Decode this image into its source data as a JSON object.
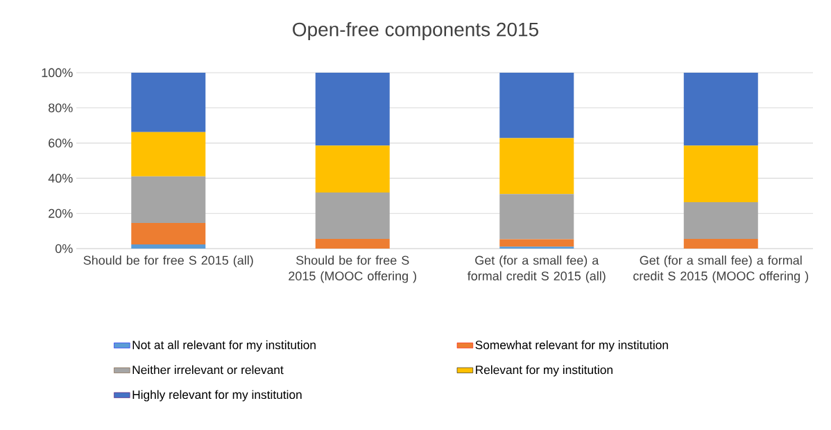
{
  "chart_data": {
    "type": "bar",
    "stacked": true,
    "title": "Open-free components 2015",
    "categories": [
      "Should be for free S 2015 (all)",
      "Should be for free  S 2015 (MOOC offering )",
      "Get (for a small fee) a formal credit S 2015 (all)",
      "Get (for a small fee) a formal credit S 2015 (MOOC offering )"
    ],
    "series": [
      {
        "name": "Not at all relevant for my institution",
        "color": "#5b9bd5",
        "values": [
          2.4,
          0,
          1.1,
          0
        ]
      },
      {
        "name": "Somewhat relevant for my institution",
        "color": "#ed7d31",
        "values": [
          12.2,
          5.5,
          4.2,
          5.5
        ]
      },
      {
        "name": "Neither irrelevant or relevant",
        "color": "#a5a5a5",
        "values": [
          26.4,
          26.4,
          25.7,
          20.9
        ]
      },
      {
        "name": "Relevant for my institution",
        "color": "#ffc000",
        "values": [
          25.2,
          26.7,
          31.8,
          32.2
        ]
      },
      {
        "name": "Highly relevant for my institution",
        "color": "#4472c4",
        "values": [
          33.8,
          41.4,
          37.2,
          41.4
        ]
      }
    ],
    "ylim": [
      0,
      100
    ],
    "yticks": [
      {
        "value": 0,
        "label": "0%"
      },
      {
        "value": 20,
        "label": "20%"
      },
      {
        "value": 40,
        "label": "40%"
      },
      {
        "value": 60,
        "label": "60%"
      },
      {
        "value": 80,
        "label": "80%"
      },
      {
        "value": 100,
        "label": "100%"
      }
    ],
    "grid": "y",
    "legend": "bottom"
  }
}
